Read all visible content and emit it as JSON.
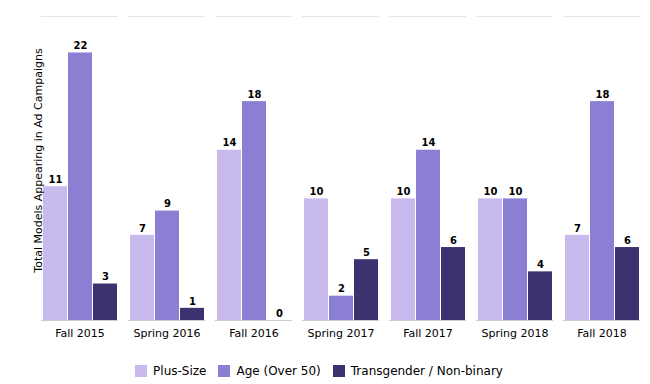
{
  "chart_data": {
    "type": "bar",
    "categories": [
      "Fall 2015",
      "Spring 2016",
      "Fall 2016",
      "Spring 2017",
      "Fall 2017",
      "Spring 2018",
      "Fall 2018"
    ],
    "series": [
      {
        "name": "Plus-Size",
        "color": "#c9baee",
        "values": [
          11,
          7,
          14,
          10,
          10,
          10,
          7
        ]
      },
      {
        "name": "Age (Over 50)",
        "color": "#8b7fd4",
        "values": [
          22,
          9,
          18,
          2,
          14,
          10,
          18
        ]
      },
      {
        "name": "Transgender / Non-binary",
        "color": "#3d3270",
        "values": [
          3,
          1,
          0,
          5,
          6,
          4,
          6
        ]
      }
    ],
    "ylabel": "Total Models Appearing in Ad Campaigns",
    "ylim": [
      0,
      25
    ],
    "data_labels": true,
    "tick_labels": "x",
    "grid": false,
    "legend": "bottom"
  }
}
